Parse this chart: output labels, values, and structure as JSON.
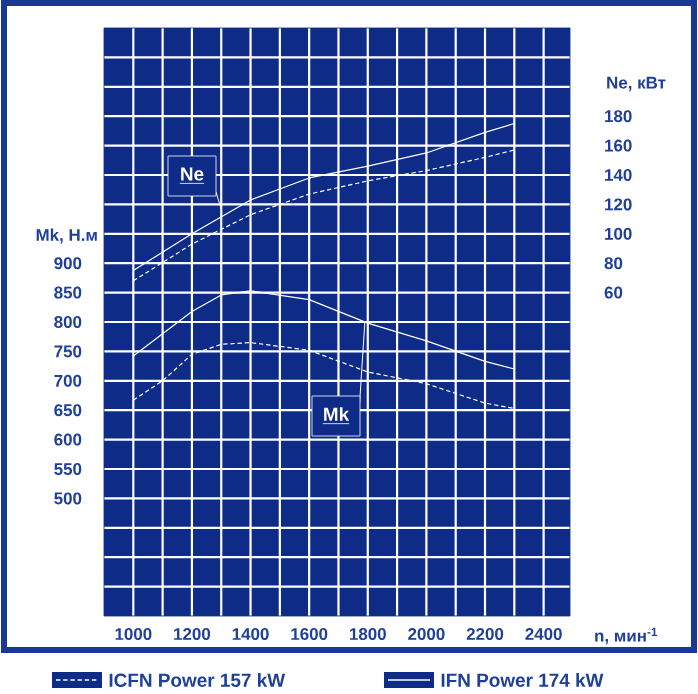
{
  "chart_data": {
    "type": "line",
    "xlabel": "n, мин$^{-1}$",
    "ylabel": "Mk, Н.м",
    "y2label": "Ne, кВт",
    "series": [
      {
        "name": "ICFN Power 157 kW",
        "color": "#ffffff",
        "line_style": "dashed",
        "axis": "y2",
        "x": [
          1000,
          1200,
          1400,
          1600,
          1800,
          2000,
          2200,
          2300
        ],
        "values": [
          68,
          93,
          113,
          127,
          136,
          143,
          152,
          157
        ]
      },
      {
        "name": "IFN Power 174 kW",
        "color": "#ffffff",
        "line_style": "solid",
        "axis": "y2",
        "x": [
          1000,
          1200,
          1400,
          1600,
          1800,
          2000,
          2200,
          2300
        ],
        "values": [
          75,
          100,
          123,
          138,
          146,
          155,
          169,
          175
        ]
      },
      {
        "color": "#ffffff",
        "line_style": "dashed",
        "x": [
          1000,
          1100,
          1200,
          1300,
          1400,
          1600,
          1800,
          2000,
          2200,
          2300
        ],
        "values": [
          667,
          700,
          745,
          762,
          765,
          752,
          715,
          695,
          662,
          653
        ]
      },
      {
        "color": "#ffffff",
        "line_style": "solid",
        "x": [
          1000,
          1200,
          1300,
          1400,
          1600,
          1800,
          2000,
          2200,
          2300
        ],
        "values": [
          742,
          818,
          846,
          853,
          838,
          798,
          768,
          733,
          720
        ]
      }
    ],
    "xlim": [
      900,
      2490
    ],
    "xticks": [
      1000,
      {
        "value": 1100,
        "label": null
      },
      1200,
      {
        "value": 1300,
        "label": null
      },
      1400,
      {
        "value": 1500,
        "label": null
      },
      1600,
      {
        "value": 1700,
        "label": null
      },
      1800,
      {
        "value": 1900,
        "label": null
      },
      2000,
      {
        "value": 2100,
        "label": null
      },
      2200,
      {
        "value": 2300,
        "label": null
      },
      2400
    ],
    "ylim": [
      300,
      1300
    ],
    "yticks": [
      {
        "value": 350,
        "label": null
      },
      {
        "value": 400,
        "label": null
      },
      {
        "value": 450,
        "label": null
      },
      500,
      550,
      600,
      650,
      700,
      750,
      800,
      850,
      900,
      {
        "value": 950,
        "label": null
      },
      {
        "value": 1000,
        "label": null
      },
      {
        "value": 1050,
        "label": null
      },
      {
        "value": 1100,
        "label": null
      },
      {
        "value": 1150,
        "label": null
      },
      {
        "value": 1200,
        "label": null
      },
      {
        "value": 1250,
        "label": null
      }
    ],
    "y2lim": [
      -160,
      240
    ],
    "y2ticks": [
      60,
      80,
      100,
      120,
      140,
      160,
      180
    ],
    "annotations": [
      "Ne",
      {
        "text": "Mk",
        "x": 1790,
        "y": 800
      }
    ],
    "grid": true,
    "legend": "bottom"
  }
}
